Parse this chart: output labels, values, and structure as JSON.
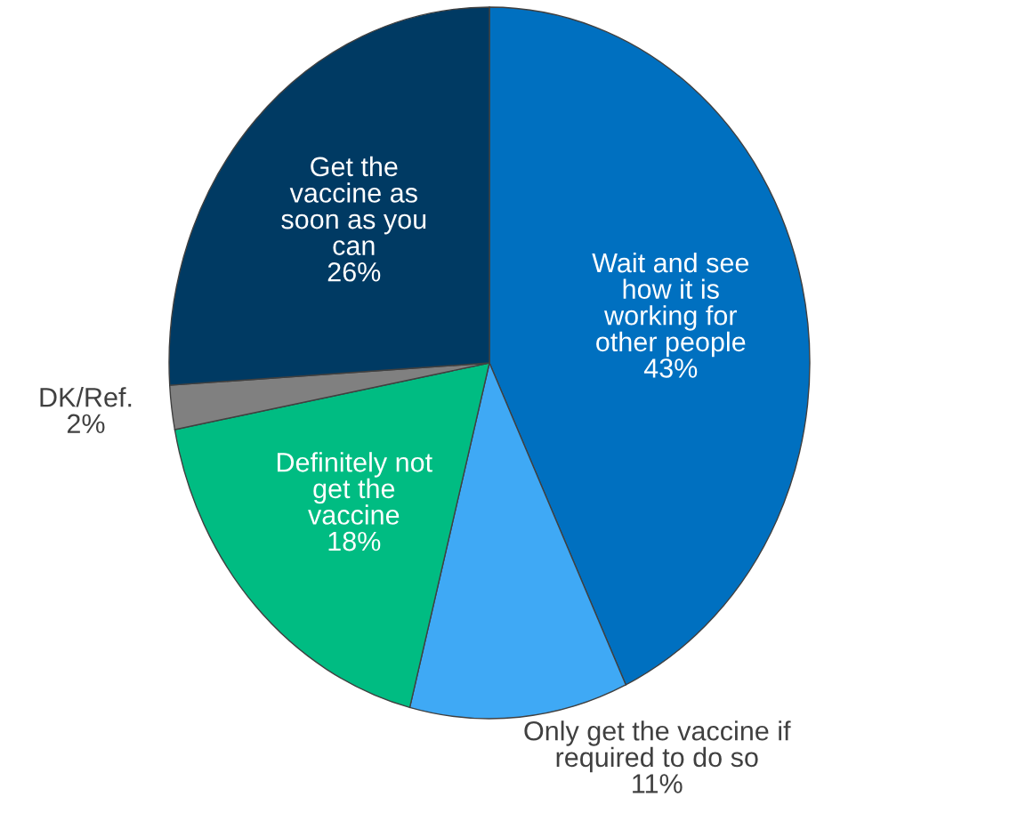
{
  "chart_data": {
    "type": "pie",
    "categories": [
      "Wait and see\nhow it is\nworking for\nother people",
      "Only get the vaccine if\nrequired to do so",
      "Definitely not\nget the\nvaccine",
      "DK/Ref.",
      "Get the\nvaccine as\nsoon as you\ncan"
    ],
    "values": [
      43,
      11,
      18,
      2,
      26
    ],
    "value_labels": [
      "43%",
      "11%",
      "18%",
      "2%",
      "26%"
    ],
    "colors": [
      "#0070c0",
      "#3fa9f5",
      "#00bc82",
      "#808080",
      "#003a63"
    ]
  }
}
